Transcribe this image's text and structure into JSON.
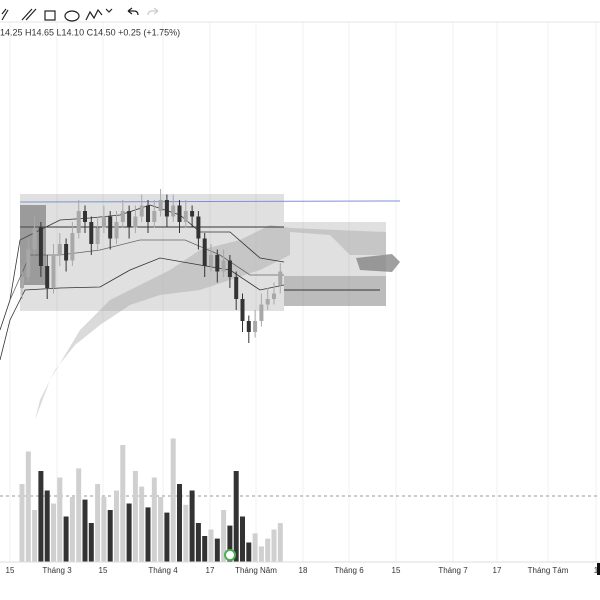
{
  "toolbar": {
    "legend": "14.25 H14.65 L14.10 C14.50 +0.25 (+1.75%)"
  },
  "chart_data": {
    "type": "candlestick",
    "ylim": [
      12,
      16.5
    ],
    "up_color": "#a8a8a8",
    "down_color": "#333333",
    "candles": [
      [
        14.2,
        14.6,
        14.0,
        14.4
      ],
      [
        14.4,
        15.1,
        14.3,
        14.9
      ],
      [
        14.9,
        15.5,
        14.8,
        15.3
      ],
      [
        15.3,
        15.4,
        14.4,
        14.6
      ],
      [
        14.6,
        14.8,
        14.0,
        14.2
      ],
      [
        14.2,
        15.0,
        14.1,
        14.8
      ],
      [
        14.8,
        15.2,
        14.6,
        15.0
      ],
      [
        15.0,
        15.1,
        14.5,
        14.7
      ],
      [
        14.7,
        15.4,
        14.6,
        15.2
      ],
      [
        15.2,
        15.8,
        15.1,
        15.6
      ],
      [
        15.6,
        15.7,
        15.2,
        15.4
      ],
      [
        15.4,
        15.5,
        14.8,
        15.0
      ],
      [
        15.0,
        15.5,
        14.9,
        15.3
      ],
      [
        15.3,
        15.7,
        15.2,
        15.5
      ],
      [
        15.5,
        15.6,
        14.9,
        15.1
      ],
      [
        15.1,
        15.6,
        15.0,
        15.4
      ],
      [
        15.4,
        15.8,
        15.3,
        15.6
      ],
      [
        15.6,
        15.7,
        15.1,
        15.3
      ],
      [
        15.3,
        15.7,
        15.2,
        15.5
      ],
      [
        15.5,
        15.9,
        15.4,
        15.7
      ],
      [
        15.7,
        15.8,
        15.2,
        15.4
      ],
      [
        15.4,
        15.8,
        15.3,
        15.6
      ],
      [
        15.6,
        16.0,
        15.5,
        15.8
      ],
      [
        15.8,
        15.9,
        15.3,
        15.5
      ],
      [
        15.5,
        15.9,
        15.4,
        15.7
      ],
      [
        15.7,
        15.8,
        15.2,
        15.4
      ],
      [
        15.4,
        15.8,
        15.3,
        15.6
      ],
      [
        15.6,
        15.7,
        15.3,
        15.5
      ],
      [
        15.5,
        15.6,
        14.9,
        15.1
      ],
      [
        15.1,
        15.2,
        14.4,
        14.6
      ],
      [
        14.6,
        15.0,
        14.5,
        14.8
      ],
      [
        14.8,
        14.9,
        14.3,
        14.5
      ],
      [
        14.5,
        14.9,
        14.4,
        14.7
      ],
      [
        14.7,
        14.8,
        14.2,
        14.4
      ],
      [
        14.4,
        14.5,
        13.8,
        14.0
      ],
      [
        14.0,
        14.1,
        13.4,
        13.6
      ],
      [
        13.6,
        13.7,
        13.2,
        13.4
      ],
      [
        13.4,
        13.8,
        13.3,
        13.6
      ],
      [
        13.6,
        14.1,
        13.5,
        13.9
      ],
      [
        13.9,
        14.2,
        13.8,
        14.0
      ],
      [
        14.0,
        14.3,
        13.9,
        14.1
      ],
      [
        14.25,
        14.65,
        14.1,
        14.5
      ]
    ],
    "volume_ylim": [
      0,
      100
    ],
    "volume": [
      60,
      85,
      40,
      70,
      55,
      45,
      65,
      35,
      50,
      72,
      48,
      30,
      60,
      50,
      40,
      55,
      90,
      45,
      70,
      58,
      42,
      65,
      50,
      38,
      95,
      60,
      44,
      55,
      30,
      20,
      25,
      18,
      40,
      28,
      70,
      35,
      15,
      22,
      12,
      18,
      25,
      30
    ],
    "x_labels": [
      "15",
      "Tháng 3",
      "15",
      "Tháng 4",
      "17",
      "Tháng Năm",
      "18",
      "Tháng 6",
      "15",
      "Tháng 7",
      "17",
      "Tháng Tám",
      "1"
    ]
  }
}
